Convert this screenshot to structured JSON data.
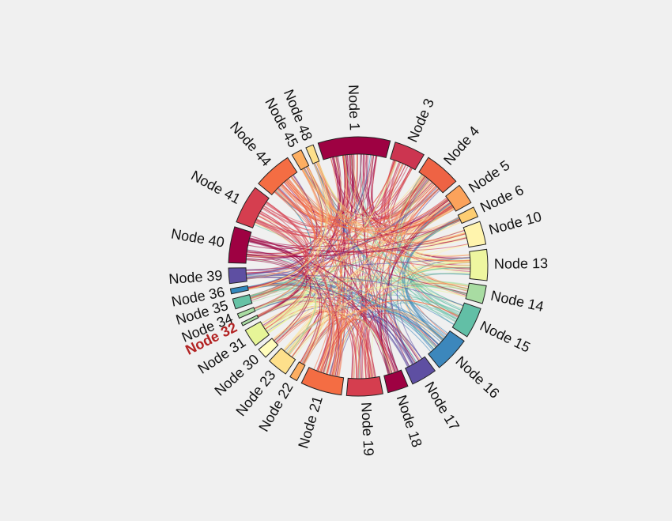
{
  "diagram": {
    "type": "chord",
    "highlighted_node": "Node 32",
    "nodes": [
      {
        "name": "Node 1",
        "color": "#9e0142",
        "weight": 14
      },
      {
        "name": "Node 3",
        "color": "#cc3550",
        "weight": 6
      },
      {
        "name": "Node 4",
        "color": "#ee6344",
        "weight": 7
      },
      {
        "name": "Node 5",
        "color": "#fba25b",
        "weight": 4
      },
      {
        "name": "Node 6",
        "color": "#fdcd72",
        "weight": 2
      },
      {
        "name": "Node 10",
        "color": "#fff4ad",
        "weight": 4.5
      },
      {
        "name": "Node 13",
        "color": "#eef6a0",
        "weight": 6
      },
      {
        "name": "Node 14",
        "color": "#a8dca2",
        "weight": 3.5
      },
      {
        "name": "Node 15",
        "color": "#62bfa6",
        "weight": 6
      },
      {
        "name": "Node 16",
        "color": "#3c87bc",
        "weight": 7
      },
      {
        "name": "Node 17",
        "color": "#5e4fa2",
        "weight": 5
      },
      {
        "name": "Node 18",
        "color": "#9e0142",
        "weight": 4
      },
      {
        "name": "Node 19",
        "color": "#d53e4f",
        "weight": 7
      },
      {
        "name": "Node 21",
        "color": "#f46d43",
        "weight": 8
      },
      {
        "name": "Node 22",
        "color": "#fdae61",
        "weight": 1.5
      },
      {
        "name": "Node 23",
        "color": "#fee08b",
        "weight": 4
      },
      {
        "name": "Node 30",
        "color": "#fffcbc",
        "weight": 2
      },
      {
        "name": "Node 31",
        "color": "#e6f598",
        "weight": 3.5
      },
      {
        "name": "Node 32",
        "color": "#abdda4",
        "weight": 0.6
      },
      {
        "name": "Node 34",
        "color": "#a8dca2",
        "weight": 0.9
      },
      {
        "name": "Node 35",
        "color": "#66c2a5",
        "weight": 2
      },
      {
        "name": "Node 36",
        "color": "#3288bd",
        "weight": 1
      },
      {
        "name": "Node 39",
        "color": "#5e4fa2",
        "weight": 3
      },
      {
        "name": "Node 40",
        "color": "#9e0142",
        "weight": 7
      },
      {
        "name": "Node 41",
        "color": "#d53e4f",
        "weight": 7.5
      },
      {
        "name": "Node 44",
        "color": "#f46d43",
        "weight": 7.5
      },
      {
        "name": "Node 45",
        "color": "#fdae61",
        "weight": 2
      },
      {
        "name": "Node 48",
        "color": "#fee08b",
        "weight": 1.5
      }
    ]
  }
}
